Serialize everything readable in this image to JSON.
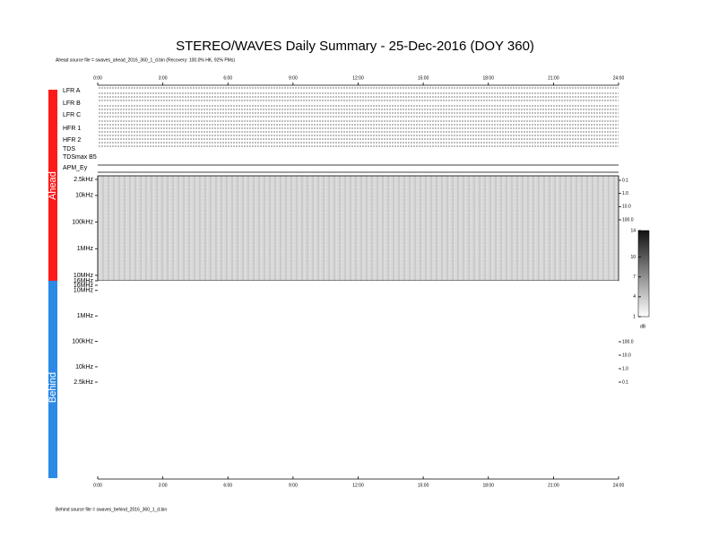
{
  "header": {
    "title": "STEREO/WAVES Daily Summary - 25-Dec-2016 (DOY 360)",
    "ahead_source": "Ahead source file = swaves_ahead_2016_360_1_d.bin (Recovery: 100.0% HK, 92% PMs)",
    "behind_source": "Behind source file = swaves_behind_2016_360_1_d.bin"
  },
  "time_axis": {
    "lim": [
      0,
      24
    ],
    "ticks": [
      {
        "value": 0,
        "label": "0:00"
      },
      {
        "value": 3,
        "label": "3:00"
      },
      {
        "value": 6,
        "label": "6:00"
      },
      {
        "value": 9,
        "label": "9:00"
      },
      {
        "value": 12,
        "label": "12:00"
      },
      {
        "value": 15,
        "label": "15:00"
      },
      {
        "value": 18,
        "label": "18:00"
      },
      {
        "value": 21,
        "label": "21:00"
      },
      {
        "value": 24,
        "label": "24:00"
      }
    ]
  },
  "panels": [
    "LFR A",
    "LFR B",
    "LFR C",
    "HFR 1",
    "HFR 2",
    "TDS",
    "TDSmax B5",
    "APM_Ey"
  ],
  "freq_axis": {
    "log": true,
    "lim": [
      2.5,
      16000
    ],
    "ticks": [
      {
        "value": 2.5,
        "label": "2.5kHz"
      },
      {
        "value": 10,
        "label": "10kHz"
      },
      {
        "value": 100,
        "label": "100kHz"
      },
      {
        "value": 1000,
        "label": "1MHz"
      },
      {
        "value": 10000,
        "label": "10MHz"
      },
      {
        "value": 16000,
        "label": "16MHz"
      }
    ]
  },
  "right_axis": {
    "log": true,
    "lim": [
      0.1,
      100
    ],
    "ticks": [
      0.1,
      {
        "value": 1,
        "label": "1.0"
      },
      {
        "value": 10,
        "label": "10.0"
      },
      {
        "value": 100,
        "label": "100.0"
      }
    ]
  },
  "colorbar": {
    "lim": [
      1,
      14
    ],
    "ticks": [
      1,
      4,
      7,
      10,
      14
    ],
    "unit": "dB"
  },
  "spacecraft": [
    "Ahead",
    "Behind"
  ]
}
